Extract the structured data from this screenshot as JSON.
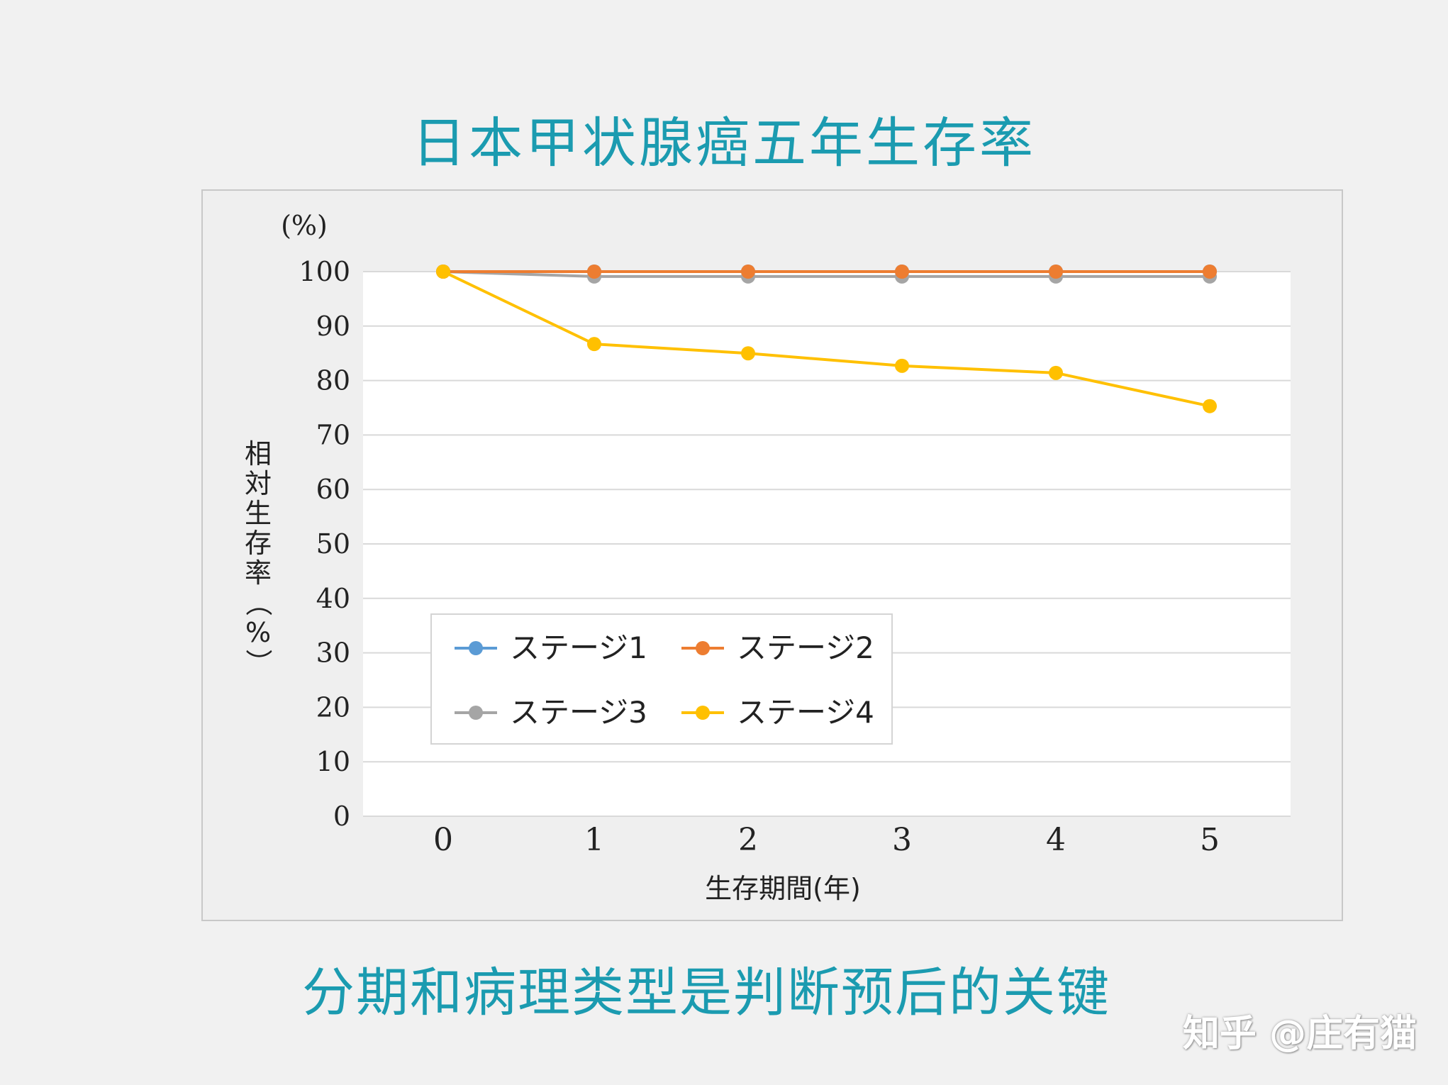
{
  "page": {
    "title": "日本甲状腺癌五年生存率",
    "subtitle": "分期和病理类型是判断预后的关键",
    "watermark": "知乎 @庄有猫"
  },
  "colors": {
    "accent": "#1b9bb0",
    "stage1": "#5b9bd5",
    "stage2": "#ed7d31",
    "stage3": "#a5a5a5",
    "stage4": "#ffc000"
  },
  "chart_data": {
    "type": "line",
    "title": "",
    "xlabel": "生存期間(年)",
    "ylabel": "相対生存率（%）",
    "y_unit": "(%)",
    "x": [
      0,
      1,
      2,
      3,
      4,
      5
    ],
    "ylim": [
      0,
      100
    ],
    "yticks": [
      0,
      10,
      20,
      30,
      40,
      50,
      60,
      70,
      80,
      90,
      100
    ],
    "grid": true,
    "legend_position": "bottom-left inside",
    "series": [
      {
        "name": "ステージ1",
        "color": "#5b9bd5",
        "values": [
          100,
          100,
          100,
          100,
          100,
          100
        ]
      },
      {
        "name": "ステージ2",
        "color": "#ed7d31",
        "values": [
          100,
          100,
          100,
          100,
          100,
          100
        ]
      },
      {
        "name": "ステージ3",
        "color": "#a5a5a5",
        "values": [
          100,
          99.1,
          99.1,
          99.1,
          99.1,
          99.1
        ]
      },
      {
        "name": "ステージ4",
        "color": "#ffc000",
        "values": [
          100,
          86.7,
          85.0,
          82.7,
          81.4,
          75.3
        ]
      }
    ]
  }
}
